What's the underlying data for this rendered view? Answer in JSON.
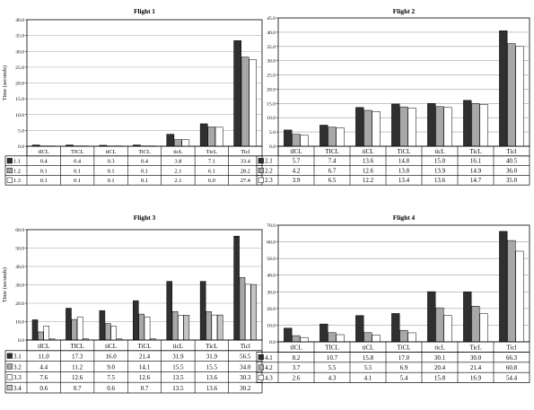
{
  "chart_data": [
    {
      "type": "bar",
      "title": "Flight 1",
      "ylabel": "Time (seconds)",
      "xlabel": "",
      "categories": [
        "tICL",
        "TICL",
        "tiCL",
        "TiCL",
        "ticL",
        "TicL",
        "Ticl"
      ],
      "ylim": [
        0,
        40
      ],
      "ytick_step": 5,
      "ytick_decimals": 1,
      "grid": true,
      "series": [
        {
          "name": "1.1",
          "values": [
            0.4,
            0.4,
            0.3,
            0.4,
            3.8,
            7.1,
            33.4
          ],
          "color": "#303030"
        },
        {
          "name": "1.2",
          "values": [
            0.1,
            0.1,
            0.1,
            0.1,
            2.1,
            6.1,
            28.2
          ],
          "color": "#a8a8a8"
        },
        {
          "name": "1.3",
          "values": [
            0.1,
            0.1,
            0.1,
            0.1,
            2.1,
            6.0,
            27.4
          ],
          "color": "#ffffff"
        }
      ]
    },
    {
      "type": "bar",
      "title": "Flight 2",
      "ylabel": "",
      "xlabel": "",
      "categories": [
        "tICL",
        "TICL",
        "tiCL",
        "TiCL",
        "ticL",
        "TicL",
        "Ticl"
      ],
      "ylim": [
        0,
        45
      ],
      "ytick_step": 5,
      "ytick_decimals": 1,
      "grid": true,
      "series": [
        {
          "name": "2.1",
          "values": [
            5.7,
            7.4,
            13.6,
            14.8,
            15.0,
            16.1,
            40.5
          ],
          "color": "#303030"
        },
        {
          "name": "2.2",
          "values": [
            4.2,
            6.7,
            12.6,
            13.8,
            13.9,
            14.9,
            36.0
          ],
          "color": "#a8a8a8"
        },
        {
          "name": "2.3",
          "values": [
            3.9,
            6.5,
            12.2,
            13.4,
            13.6,
            14.7,
            35.0
          ],
          "color": "#ffffff"
        }
      ]
    },
    {
      "type": "bar",
      "title": "Flight 3",
      "ylabel": "Time (seconds)",
      "xlabel": "",
      "categories": [
        "tICL",
        "TICL",
        "tiCL",
        "TiCL",
        "ticL",
        "TicL",
        "Ticl"
      ],
      "ylim": [
        0,
        60
      ],
      "ytick_step": 10,
      "ytick_decimals": 1,
      "grid": true,
      "series": [
        {
          "name": "3.1",
          "values": [
            11.0,
            17.3,
            16.0,
            21.4,
            31.9,
            31.9,
            56.5
          ],
          "color": "#303030"
        },
        {
          "name": "3.2",
          "values": [
            4.4,
            11.2,
            9.0,
            14.1,
            15.5,
            15.5,
            34.0
          ],
          "color": "#a8a8a8"
        },
        {
          "name": "3.3",
          "values": [
            7.6,
            12.6,
            7.5,
            12.6,
            13.5,
            13.6,
            30.3
          ],
          "color": "#ffffff"
        },
        {
          "name": "3.4",
          "values": [
            0.6,
            0.7,
            0.6,
            0.7,
            13.5,
            13.6,
            30.2
          ],
          "color": "#c4c4c4"
        }
      ]
    },
    {
      "type": "bar",
      "title": "Flight 4",
      "ylabel": "",
      "xlabel": "",
      "categories": [
        "tICL",
        "TICL",
        "tiCL",
        "TiCL",
        "ticL",
        "TicL",
        "Ticl"
      ],
      "ylim": [
        0,
        70
      ],
      "ytick_step": 10,
      "ytick_decimals": 1,
      "grid": true,
      "series": [
        {
          "name": "4.1",
          "values": [
            8.2,
            10.7,
            15.8,
            17.0,
            30.1,
            30.0,
            66.3
          ],
          "color": "#303030"
        },
        {
          "name": "4.2",
          "values": [
            3.7,
            5.5,
            5.5,
            6.9,
            20.4,
            21.4,
            60.8
          ],
          "color": "#a8a8a8"
        },
        {
          "name": "4.3",
          "values": [
            2.6,
            4.3,
            4.1,
            5.4,
            15.8,
            16.9,
            54.4
          ],
          "color": "#ffffff"
        }
      ]
    }
  ]
}
